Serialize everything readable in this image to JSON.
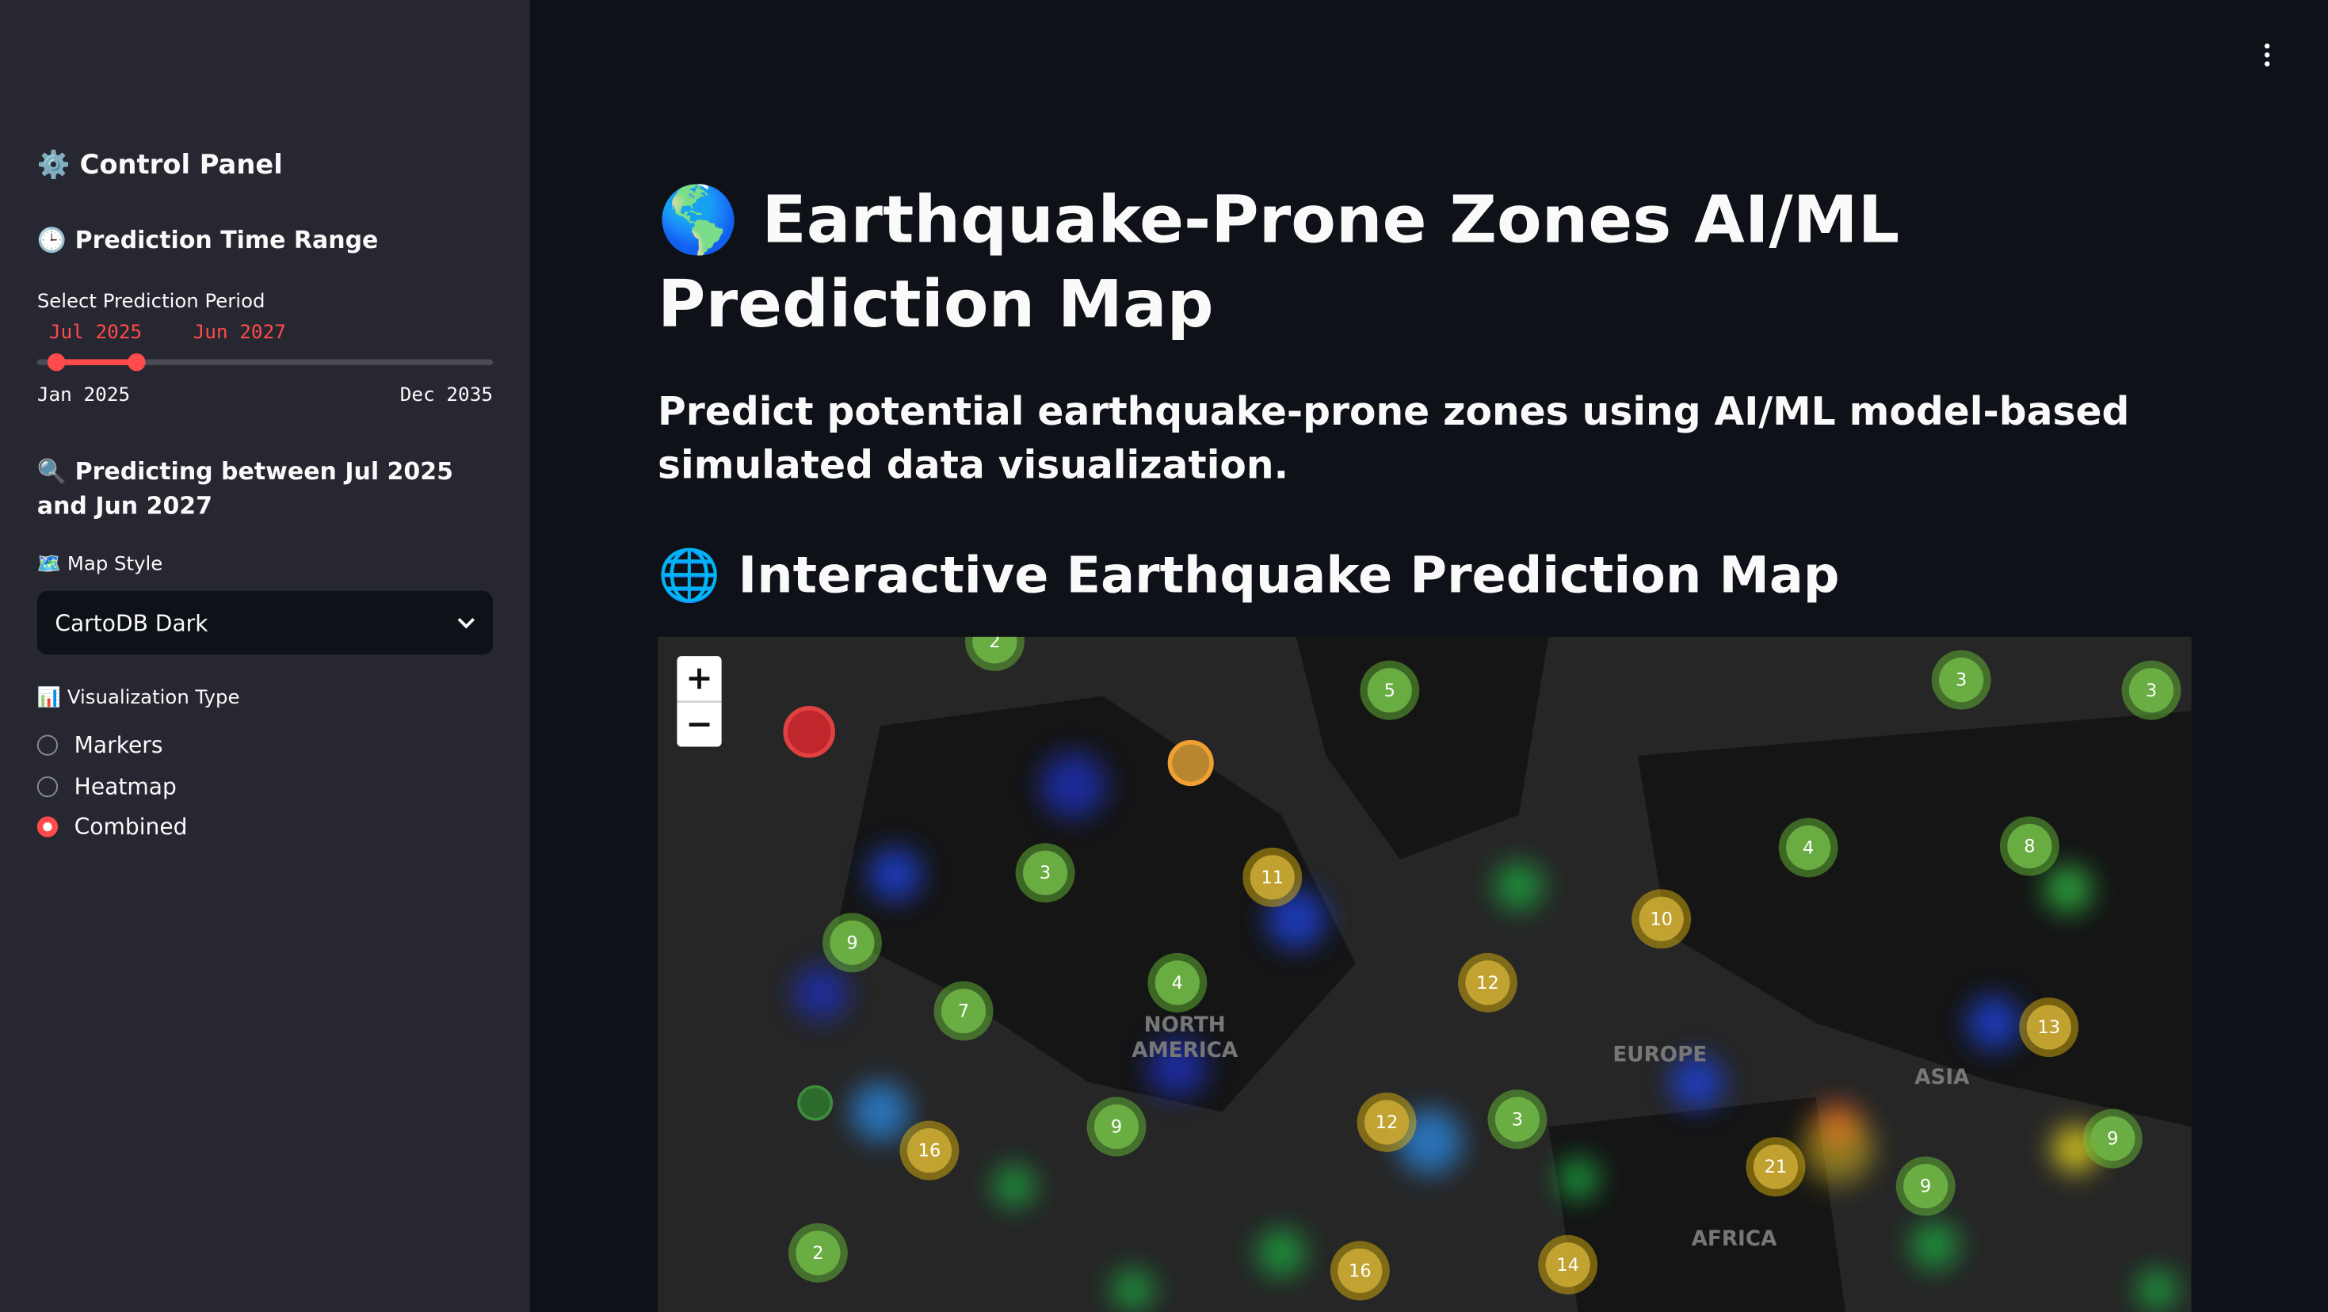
{
  "sidebar": {
    "title": "⚙️ Control Panel",
    "time_range_heading": "🕒 Prediction Time Range",
    "slider_label": "Select Prediction Period",
    "slider_start": "Jul 2025",
    "slider_end": "Jun 2027",
    "slider_min": "Jan 2025",
    "slider_max": "Dec 2035",
    "predicting_text": "🔍 Predicting between Jul 2025 and Jun 2027",
    "map_style_label": "🗺️ Map Style",
    "map_style_value": "CartoDB Dark",
    "viz_label": "📊 Visualization Type",
    "viz_options": [
      "Markers",
      "Heatmap",
      "Combined"
    ],
    "viz_selected": 2
  },
  "main": {
    "title": "🌎 Earthquake-Prone Zones AI/ML Prediction Map",
    "subtitle": "Predict potential earthquake-prone zones using AI/ML model-based simulated data visualization.",
    "map_heading": "🌐 Interactive Earthquake Prediction Map"
  },
  "map": {
    "zoom_in": "+",
    "zoom_out": "−",
    "regions": [
      "NORTH AMERICA",
      "EUROPE",
      "ASIA",
      "AFRICA"
    ],
    "clusters": [
      2,
      5,
      3,
      3,
      3,
      11,
      4,
      8,
      9,
      10,
      7,
      4,
      12,
      13,
      12,
      3,
      9,
      16,
      21,
      9,
      9,
      2,
      16,
      14
    ]
  }
}
